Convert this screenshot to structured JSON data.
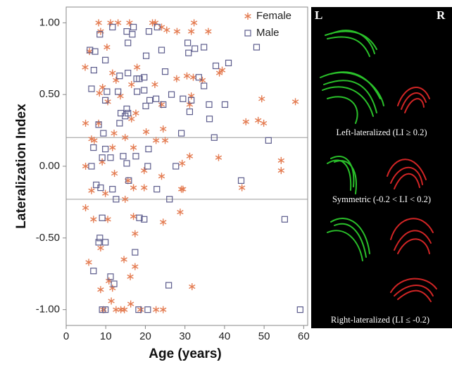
{
  "chart_data": {
    "type": "scatter",
    "x_label": "Age (years)",
    "y_label": "Lateralization Index",
    "xlim": [
      0,
      61
    ],
    "ylim": [
      -1.11,
      1.11
    ],
    "xticks": [
      0,
      10,
      20,
      30,
      40,
      50,
      60
    ],
    "yticks": [
      {
        "value": 1,
        "label": "1.00"
      },
      {
        "value": 0.5,
        "label": "0.50"
      },
      {
        "value": 0,
        "label": "0.00"
      },
      {
        "value": -0.5,
        "label": "-0.50"
      },
      {
        "value": -1,
        "label": "-1.00"
      }
    ],
    "hlines": [
      0.2,
      -0.23
    ],
    "legend": "upper right",
    "grid": false,
    "series": [
      {
        "name": "Female",
        "color": "#e47c52",
        "marker": "star",
        "x": [
          8.2,
          11.2,
          13.1,
          16,
          21.8,
          22.5,
          32.3,
          8.7,
          24.1,
          25.4,
          28,
          35.9,
          10.3,
          31.6,
          5.9,
          4.8,
          11.7,
          17.9,
          30.5,
          32.1,
          39.4,
          38.7,
          9.2,
          8.4,
          12.6,
          16.5,
          22.4,
          27.9,
          34.4,
          13.7,
          31.6,
          49.4,
          10.5,
          8.2,
          4.9,
          17.6,
          24.1,
          31.2,
          16.5,
          45.4,
          48.5,
          49.9,
          57.9,
          24.5,
          12.1,
          20.2,
          14.9,
          6.4,
          7.1,
          22.7,
          25,
          11.7,
          17,
          31.2,
          38.5,
          9.1,
          29.3,
          54.3,
          54.3,
          4.9,
          12.2,
          19.7,
          24.1,
          15.6,
          17,
          19.7,
          29.1,
          29.5,
          44.4,
          6.4,
          9.9,
          14.9,
          4.9,
          28.8,
          6.9,
          10.5,
          17,
          24.5,
          17.4,
          8.7,
          5.7,
          14.6,
          17.4,
          16.2,
          10.8,
          11.7,
          8.7,
          11.4,
          16.3,
          31.8,
          9.4,
          12.6,
          13.8,
          14.7,
          18.8,
          22.7,
          24.5
        ],
        "values": [
          1,
          1,
          1,
          1,
          1,
          1,
          1,
          0.94,
          0.97,
          0.95,
          0.94,
          0.94,
          0.83,
          0.94,
          0.8,
          0.69,
          0.65,
          0.69,
          0.63,
          0.62,
          0.67,
          0.65,
          0.55,
          0.51,
          0.6,
          0.57,
          0.57,
          0.61,
          0.6,
          0.49,
          0.49,
          0.47,
          0.45,
          0.3,
          0.3,
          0.37,
          0.43,
          0.43,
          0.33,
          0.31,
          0.32,
          0.3,
          0.45,
          0.26,
          0.23,
          0.24,
          0.2,
          0.19,
          0.18,
          0.18,
          0.18,
          0.13,
          0.13,
          0.07,
          0.06,
          0.03,
          0.02,
          0.04,
          -0.03,
          0,
          -0.05,
          -0.03,
          -0.07,
          -0.1,
          -0.15,
          -0.15,
          -0.16,
          -0.16,
          -0.15,
          -0.17,
          -0.19,
          -0.23,
          -0.29,
          -0.32,
          -0.37,
          -0.37,
          -0.35,
          -0.39,
          -0.47,
          -0.57,
          -0.67,
          -0.65,
          -0.7,
          -0.77,
          -0.8,
          -0.85,
          -0.86,
          -0.94,
          -0.96,
          -0.84,
          -1,
          -1,
          -1,
          -1,
          -1,
          -1,
          -1
        ]
      },
      {
        "name": "Male",
        "color": "#5c5c8c",
        "marker": "square",
        "x": [
          6,
          7.3,
          8.5,
          11.7,
          15.3,
          17,
          16.7,
          20.9,
          23,
          15.6,
          9.9,
          20.2,
          24.1,
          30.7,
          30.9,
          32.5,
          34.8,
          48.1,
          41,
          37.8,
          7,
          13.5,
          15.6,
          17.8,
          18.5,
          19.7,
          25,
          33.5,
          6.4,
          10.3,
          13.1,
          17.9,
          19.7,
          26.6,
          34.8,
          9.9,
          21.1,
          22.7,
          24.5,
          29.5,
          31.6,
          15.3,
          20.1,
          36.1,
          40.1,
          13.8,
          15.6,
          14.9,
          31.2,
          8.2,
          13.5,
          36.2,
          9.4,
          29.1,
          37.4,
          51.1,
          6.9,
          9.9,
          14.4,
          17.6,
          20.8,
          9.1,
          11.2,
          15.3,
          6.4,
          20.6,
          27.7,
          7.6,
          8.7,
          11.7,
          15.8,
          22.9,
          44.2,
          12.6,
          26.1,
          9.1,
          18.5,
          19.7,
          55.2,
          8.5,
          8.2,
          9.9,
          17.4,
          6.9,
          11.2,
          12.1,
          25.9,
          9.1,
          9.9,
          18.3,
          20.6,
          59.1
        ],
        "values": [
          0.81,
          0.8,
          0.92,
          0.97,
          0.94,
          0.97,
          0.92,
          0.94,
          0.97,
          0.86,
          0.74,
          0.77,
          0.81,
          0.86,
          0.79,
          0.82,
          0.83,
          0.83,
          0.72,
          0.7,
          0.67,
          0.63,
          0.65,
          0.61,
          0.61,
          0.62,
          0.66,
          0.62,
          0.54,
          0.52,
          0.52,
          0.52,
          0.53,
          0.5,
          0.56,
          0.46,
          0.46,
          0.47,
          0.43,
          0.47,
          0.46,
          0.4,
          0.42,
          0.43,
          0.43,
          0.37,
          0.37,
          0.35,
          0.38,
          0.29,
          0.3,
          0.33,
          0.23,
          0.23,
          0.2,
          0.18,
          0.13,
          0.12,
          0.07,
          0.07,
          0.12,
          0.06,
          0.06,
          0.02,
          0,
          0,
          0,
          -0.13,
          -0.15,
          -0.16,
          -0.1,
          -0.16,
          -0.1,
          -0.23,
          -0.23,
          -0.36,
          -0.36,
          -0.37,
          -0.37,
          -0.5,
          -0.53,
          -0.53,
          -0.6,
          -0.73,
          -0.77,
          -0.82,
          -0.83,
          -1,
          -1,
          -1,
          -1,
          -1
        ]
      }
    ]
  },
  "panel": {
    "left_label": "L",
    "right_label": "R",
    "captions": [
      "Left-lateralized (LI ≥ 0.2)",
      "Symmetric (-0.2 < LI < 0.2)",
      "Right-lateralized (LI ≤ -0.2)"
    ]
  }
}
